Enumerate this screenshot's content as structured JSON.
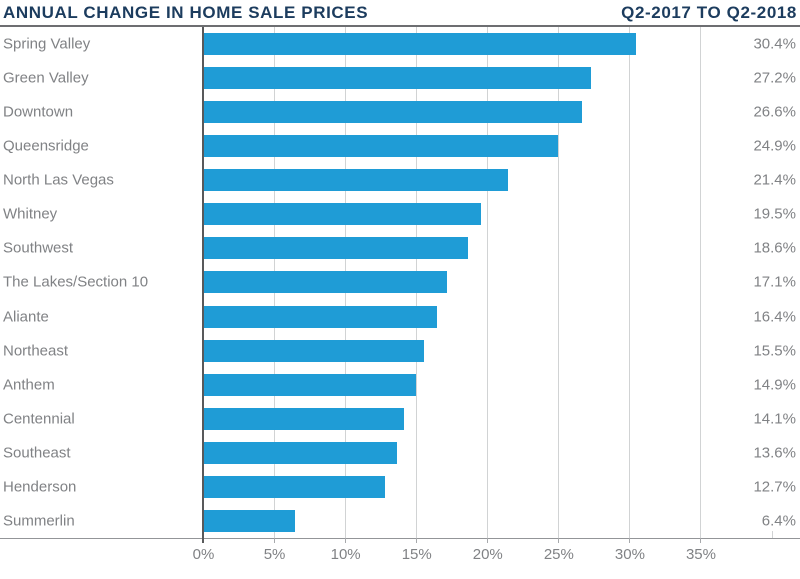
{
  "header": {
    "title": "ANNUAL CHANGE IN HOME SALE PRICES",
    "period": "Q2-2017 TO Q2-2018"
  },
  "colors": {
    "bar": "#1f9cd6",
    "title_navy": "#1c3c5e",
    "label_gray": "#808285",
    "gridline": "#d1d3d4",
    "zero_axis": "#58595b",
    "header_rule": "#6d6e71",
    "axis_baseline": "#939598"
  },
  "chart_data": {
    "type": "bar",
    "orientation": "horizontal",
    "title": "ANNUAL CHANGE IN HOME SALE PRICES",
    "subtitle": "Q2-2017 TO Q2-2018",
    "xlabel": "",
    "ylabel": "",
    "categories": [
      "Spring Valley",
      "Green Valley",
      "Downtown",
      "Queensridge",
      "North Las Vegas",
      "Whitney",
      "Southwest",
      "The Lakes/Section 10",
      "Aliante",
      "Northeast",
      "Anthem",
      "Centennial",
      "Southeast",
      "Henderson",
      "Summerlin"
    ],
    "values": [
      30.4,
      27.2,
      26.6,
      24.9,
      21.4,
      19.5,
      18.6,
      17.1,
      16.4,
      15.5,
      14.9,
      14.1,
      13.6,
      12.7,
      6.4
    ],
    "value_labels": [
      "30.4%",
      "27.2%",
      "26.6%",
      "24.9%",
      "21.4%",
      "19.5%",
      "18.6%",
      "17.1%",
      "16.4%",
      "15.5%",
      "14.9%",
      "14.1%",
      "13.6%",
      "12.7%",
      "6.4%"
    ],
    "x_tick_values": [
      0,
      5,
      10,
      15,
      20,
      25,
      30,
      35
    ],
    "x_tick_labels": [
      "0%",
      "5%",
      "10%",
      "15%",
      "20%",
      "25%",
      "30%",
      "35%"
    ],
    "xlim": [
      0,
      40
    ],
    "grid": true,
    "value_label_position": "right-margin",
    "legend": "none"
  }
}
